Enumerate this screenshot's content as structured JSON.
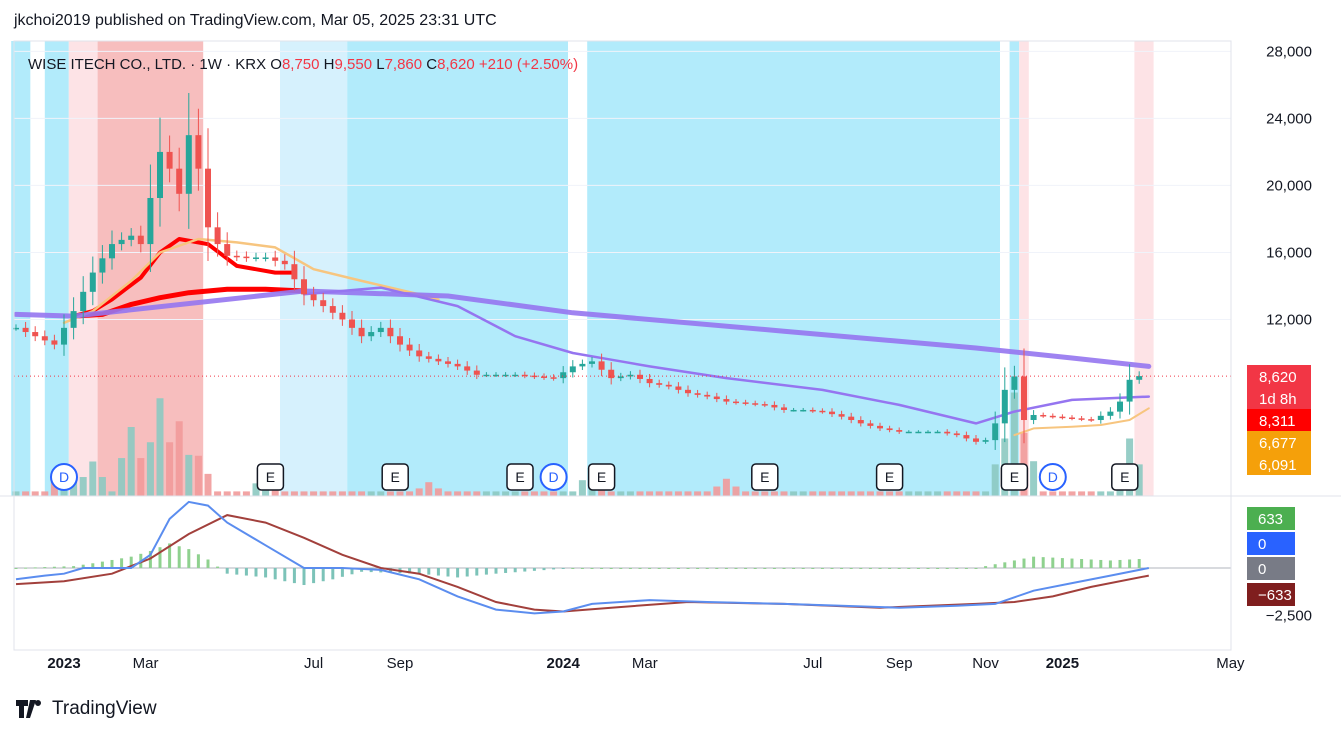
{
  "publisher": "jkchoi2019 published on TradingView.com, Mar 05, 2025 23:31 UTC",
  "brand": "TradingView",
  "symbol_header": {
    "name": "WISE ITECH CO., LTD.",
    "interval": "1W",
    "exchange": "KRX",
    "open_label": "O",
    "open": "8,750",
    "high_label": "H",
    "high": "9,550",
    "low_label": "L",
    "low": "7,860",
    "close_label": "C",
    "close": "8,620",
    "change": "+210 (+2.50%)"
  },
  "colors": {
    "up": "#26a69a",
    "down": "#ef5350",
    "ma_red": "#ff0000",
    "ma_purple": "#9575f0",
    "ma_orange": "#f7c57f",
    "bg_blue": "#b2ebfb",
    "bg_red": "#f7bebe",
    "macd_line": "#5b8def",
    "signal_line": "#a2403c"
  },
  "price_labels": [
    {
      "text": "8,620",
      "color": "#f23645"
    },
    {
      "text": "1d 8h",
      "color": "#f23645"
    },
    {
      "text": "8,311",
      "color": "#ff0000"
    },
    {
      "text": "6,677",
      "color": "#f5a00a"
    },
    {
      "text": "6,091",
      "color": "#f5a00a"
    }
  ],
  "macd_labels": [
    {
      "text": "633",
      "color": "#4caf50"
    },
    {
      "text": "0",
      "color": "#2962ff"
    },
    {
      "text": "0",
      "color": "#787b86"
    },
    {
      "text": "−633",
      "color": "#7f1e1e"
    }
  ],
  "chart_data": {
    "type": "candlestick",
    "symbol": "WISE ITECH CO., LTD.",
    "y_ticks": [
      "28,000",
      "24,000",
      "20,000",
      "16,000",
      "12,000"
    ],
    "y_tick_values": [
      28000,
      24000,
      20000,
      16000,
      12000
    ],
    "macd_ticks": [
      "−2,500"
    ],
    "macd_tick_values": [
      -2500
    ],
    "x_ticks": [
      {
        "label": "2023",
        "bold": true,
        "week": 5
      },
      {
        "label": "Mar",
        "bold": false,
        "week": 13.5
      },
      {
        "label": "Jul",
        "bold": false,
        "week": 31
      },
      {
        "label": "Sep",
        "bold": false,
        "week": 40
      },
      {
        "label": "2024",
        "bold": true,
        "week": 57
      },
      {
        "label": "Mar",
        "bold": false,
        "week": 65.5
      },
      {
        "label": "Jul",
        "bold": false,
        "week": 83
      },
      {
        "label": "Sep",
        "bold": false,
        "week": 92
      },
      {
        "label": "Nov",
        "bold": false,
        "week": 101
      },
      {
        "label": "2025",
        "bold": true,
        "week": 109
      },
      {
        "label": "May",
        "bold": false,
        "week": 126.5
      }
    ],
    "candle_anchors": [
      [
        0,
        11500
      ],
      [
        4,
        10500
      ],
      [
        6,
        12500
      ],
      [
        8,
        14800
      ],
      [
        10,
        16500
      ],
      [
        12,
        17000
      ],
      [
        13,
        16500
      ],
      [
        15,
        22000
      ],
      [
        16,
        21000
      ],
      [
        17,
        19500
      ],
      [
        18,
        23000
      ],
      [
        19,
        21000
      ],
      [
        20,
        17500
      ],
      [
        21,
        16500
      ],
      [
        22,
        15800
      ],
      [
        24,
        15700
      ],
      [
        26,
        15700
      ],
      [
        28,
        15300
      ],
      [
        30,
        13500
      ],
      [
        32,
        12800
      ],
      [
        34,
        12000
      ],
      [
        36,
        11000
      ],
      [
        38,
        11500
      ],
      [
        40,
        10500
      ],
      [
        42,
        9800
      ],
      [
        46,
        9200
      ],
      [
        48,
        8700
      ],
      [
        52,
        8700
      ],
      [
        56,
        8500
      ],
      [
        58,
        9200
      ],
      [
        60,
        9500
      ],
      [
        62,
        8500
      ],
      [
        64,
        8700
      ],
      [
        66,
        8200
      ],
      [
        68,
        8000
      ],
      [
        70,
        7600
      ],
      [
        72,
        7400
      ],
      [
        74,
        7100
      ],
      [
        76,
        7000
      ],
      [
        78,
        6900
      ],
      [
        80,
        6600
      ],
      [
        82,
        6600
      ],
      [
        84,
        6500
      ],
      [
        86,
        6200
      ],
      [
        88,
        5800
      ],
      [
        90,
        5500
      ],
      [
        92,
        5300
      ],
      [
        96,
        5300
      ],
      [
        98,
        5100
      ],
      [
        100,
        4700
      ],
      [
        101,
        4800
      ],
      [
        102,
        5800
      ],
      [
        103,
        7800
      ],
      [
        104,
        8600
      ],
      [
        105,
        6000
      ],
      [
        106,
        6300
      ],
      [
        108,
        6200
      ],
      [
        110,
        6100
      ],
      [
        112,
        6000
      ],
      [
        114,
        6500
      ],
      [
        115,
        7100
      ],
      [
        116,
        8400
      ],
      [
        117,
        8620
      ]
    ],
    "volume_peaks": [
      [
        5,
        0.22
      ],
      [
        8,
        0.3
      ],
      [
        12,
        0.6
      ],
      [
        15,
        0.85
      ],
      [
        17,
        0.65
      ],
      [
        19,
        0.35
      ],
      [
        26,
        0.2
      ],
      [
        43,
        0.12
      ],
      [
        60,
        0.25
      ],
      [
        74,
        0.15
      ],
      [
        103,
        0.5
      ],
      [
        104,
        0.9
      ],
      [
        105,
        0.55
      ],
      [
        116,
        0.5
      ],
      [
        117,
        0.25
      ]
    ],
    "background_bands": [
      {
        "from": -0.5,
        "to": 1.5,
        "color": "blue"
      },
      {
        "from": 1.5,
        "to": 3,
        "color": "white"
      },
      {
        "from": 3,
        "to": 5.5,
        "color": "blue"
      },
      {
        "from": 5.5,
        "to": 8.5,
        "color": "pinklight"
      },
      {
        "from": 8.5,
        "to": 19.5,
        "color": "red"
      },
      {
        "from": 27.5,
        "to": 34.5,
        "color": "bluelight"
      },
      {
        "from": 34.5,
        "to": 57.5,
        "color": "blue"
      },
      {
        "from": 59.5,
        "to": 102.5,
        "color": "blue"
      },
      {
        "from": 103.5,
        "to": 104.5,
        "color": "blue"
      },
      {
        "from": 104.5,
        "to": 105.5,
        "color": "pinklight"
      },
      {
        "from": 116.5,
        "to": 118.5,
        "color": "pinklight"
      }
    ],
    "markers": [
      {
        "type": "D",
        "week": 5
      },
      {
        "type": "E",
        "week": 26.5
      },
      {
        "type": "E",
        "week": 39.5
      },
      {
        "type": "E",
        "week": 52.5
      },
      {
        "type": "D",
        "week": 56
      },
      {
        "type": "E",
        "week": 61
      },
      {
        "type": "E",
        "week": 78
      },
      {
        "type": "E",
        "week": 91
      },
      {
        "type": "E",
        "week": 104
      },
      {
        "type": "D",
        "week": 108
      },
      {
        "type": "E",
        "week": 115.5
      }
    ],
    "series": [
      {
        "name": "",
        "color": "#ff0000",
        "points": [
          [
            6,
            12200
          ],
          [
            8,
            12500
          ],
          [
            10,
            13200
          ],
          [
            13,
            14500
          ],
          [
            15,
            16000
          ],
          [
            17,
            16800
          ],
          [
            20,
            16500
          ],
          [
            23,
            15200
          ],
          [
            27,
            14800
          ],
          [
            29,
            14800
          ]
        ]
      },
      {
        "name": "",
        "color": "#ff0000",
        "points": [
          [
            6,
            12200
          ],
          [
            9,
            12300
          ],
          [
            12,
            12900
          ],
          [
            15,
            13300
          ],
          [
            18,
            13600
          ],
          [
            22,
            13800
          ],
          [
            26,
            13800
          ],
          [
            30,
            13700
          ]
        ]
      },
      {
        "name": "",
        "color": "#f7c57f",
        "points": [
          [
            5,
            11800
          ],
          [
            8,
            12500
          ],
          [
            12,
            14300
          ],
          [
            15,
            16000
          ],
          [
            19,
            16800
          ],
          [
            23,
            16600
          ],
          [
            27,
            16300
          ],
          [
            31,
            15000
          ],
          [
            36,
            14300
          ],
          [
            42,
            13500
          ],
          [
            44,
            13200
          ]
        ]
      },
      {
        "name": "",
        "color": "#9575f0",
        "points": [
          [
            0,
            12300
          ],
          [
            6,
            12200
          ],
          [
            30,
            13700
          ],
          [
            45,
            13400
          ],
          [
            58,
            12400
          ],
          [
            80,
            11300
          ],
          [
            100,
            10300
          ],
          [
            110,
            9700
          ],
          [
            118,
            9200
          ]
        ]
      },
      {
        "name": "",
        "color": "#9575f0",
        "points": [
          [
            30,
            13500
          ],
          [
            38,
            13900
          ],
          [
            46,
            12800
          ],
          [
            52,
            11000
          ],
          [
            58,
            10000
          ],
          [
            62,
            9600
          ],
          [
            66,
            9200
          ],
          [
            74,
            8500
          ],
          [
            84,
            7800
          ],
          [
            92,
            6900
          ],
          [
            100,
            5800
          ],
          [
            104,
            6500
          ],
          [
            110,
            7200
          ],
          [
            118,
            7400
          ]
        ]
      },
      {
        "name": "",
        "color": "#f7c57f",
        "points": [
          [
            104,
            5100
          ],
          [
            106,
            5500
          ],
          [
            110,
            5600
          ],
          [
            113,
            5700
          ],
          [
            116,
            6000
          ],
          [
            118,
            6700
          ]
        ]
      }
    ],
    "macd": {
      "macd_line": [
        [
          0,
          -600
        ],
        [
          3,
          -400
        ],
        [
          5,
          -300
        ],
        [
          7,
          0
        ],
        [
          12,
          0
        ],
        [
          14,
          700
        ],
        [
          16,
          2600
        ],
        [
          18,
          3500
        ],
        [
          20,
          3300
        ],
        [
          22,
          2400
        ],
        [
          26,
          1200
        ],
        [
          30,
          0
        ],
        [
          34,
          0
        ],
        [
          38,
          -100
        ],
        [
          42,
          -600
        ],
        [
          46,
          -1500
        ],
        [
          50,
          -2200
        ],
        [
          54,
          -2400
        ],
        [
          57,
          -2300
        ],
        [
          60,
          -1900
        ],
        [
          66,
          -1700
        ],
        [
          72,
          -1800
        ],
        [
          80,
          -1900
        ],
        [
          86,
          -2000
        ],
        [
          92,
          -2100
        ],
        [
          98,
          -2000
        ],
        [
          102,
          -1900
        ],
        [
          106,
          -1200
        ],
        [
          110,
          -800
        ],
        [
          114,
          -400
        ],
        [
          118,
          0
        ]
      ],
      "signal_line": [
        [
          0,
          -850
        ],
        [
          5,
          -700
        ],
        [
          10,
          -300
        ],
        [
          14,
          500
        ],
        [
          18,
          1800
        ],
        [
          22,
          2800
        ],
        [
          26,
          2400
        ],
        [
          30,
          1600
        ],
        [
          34,
          700
        ],
        [
          38,
          0
        ],
        [
          42,
          -300
        ],
        [
          46,
          -1000
        ],
        [
          50,
          -1800
        ],
        [
          54,
          -2200
        ],
        [
          57,
          -2300
        ],
        [
          62,
          -2100
        ],
        [
          70,
          -1800
        ],
        [
          80,
          -1900
        ],
        [
          90,
          -2100
        ],
        [
          100,
          -1900
        ],
        [
          104,
          -1800
        ],
        [
          108,
          -1500
        ],
        [
          112,
          -1000
        ],
        [
          118,
          -400
        ]
      ],
      "hist": [
        [
          0,
          0
        ],
        [
          6,
          100
        ],
        [
          8,
          250
        ],
        [
          12,
          600
        ],
        [
          14,
          900
        ],
        [
          16,
          1300
        ],
        [
          18,
          1000
        ],
        [
          20,
          450
        ],
        [
          22,
          -300
        ],
        [
          26,
          -500
        ],
        [
          30,
          -900
        ],
        [
          33,
          -600
        ],
        [
          36,
          -200
        ],
        [
          42,
          -300
        ],
        [
          46,
          -500
        ],
        [
          50,
          -300
        ],
        [
          54,
          -150
        ],
        [
          58,
          0
        ],
        [
          64,
          0
        ],
        [
          70,
          0
        ],
        [
          100,
          0
        ],
        [
          104,
          400
        ],
        [
          106,
          600
        ],
        [
          110,
          500
        ],
        [
          114,
          400
        ],
        [
          118,
          500
        ]
      ]
    }
  }
}
